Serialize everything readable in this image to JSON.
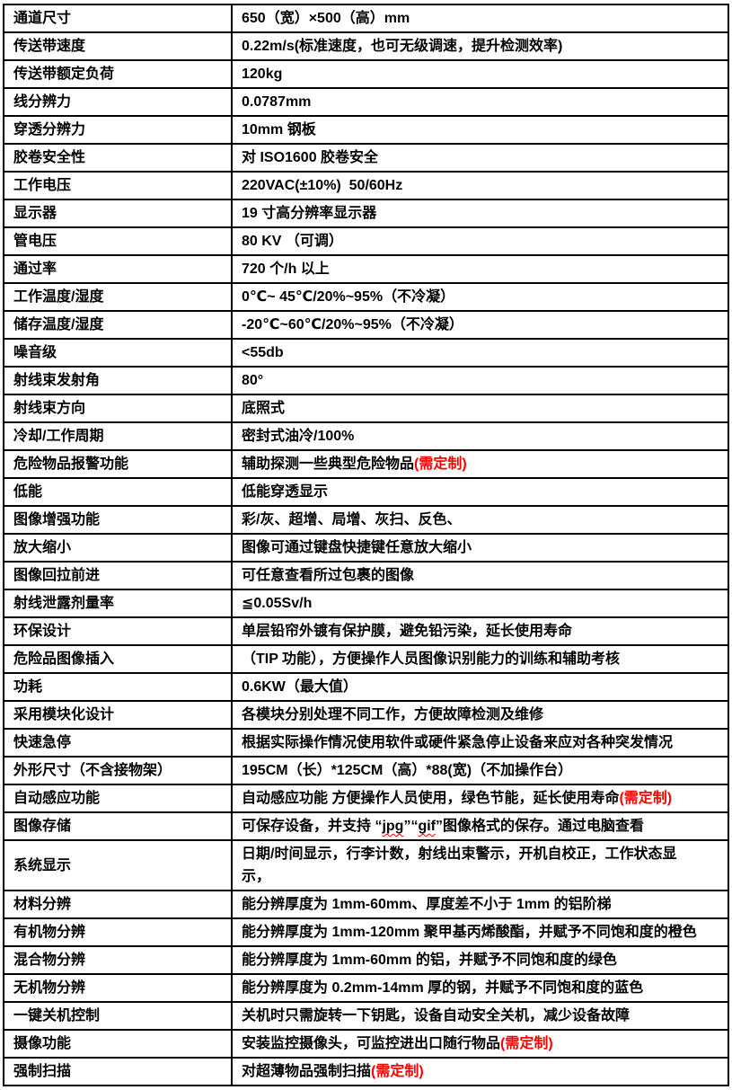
{
  "colors": {
    "row_shade": "#d9d9d9",
    "border": "#000000",
    "highlight_red": "#ff0000",
    "background": "#ffffff"
  },
  "table": {
    "rows": [
      {
        "label": "通道尺寸",
        "label_shaded": true,
        "value_shaded": true,
        "segments": [
          {
            "text": "650（宽）×500（高）mm"
          }
        ]
      },
      {
        "label": "传送带速度",
        "label_shaded": false,
        "value_shaded": false,
        "segments": [
          {
            "text": "0.22m/s(标准速度，也可无级调速，提升检测效率)"
          }
        ]
      },
      {
        "label": "传送带额定负荷",
        "label_shaded": true,
        "value_shaded": true,
        "segments": [
          {
            "text": "120kg"
          }
        ]
      },
      {
        "label": "线分辨力",
        "label_shaded": false,
        "value_shaded": false,
        "segments": [
          {
            "text": "0.0787mm"
          }
        ]
      },
      {
        "label": "穿透分辨力",
        "label_shaded": true,
        "value_shaded": true,
        "segments": [
          {
            "text": "10mm 钢板"
          }
        ]
      },
      {
        "label": "胶卷安全性",
        "label_shaded": false,
        "value_shaded": false,
        "segments": [
          {
            "text": "对 ISO1600 胶卷安全"
          }
        ]
      },
      {
        "label": "工作电压",
        "label_shaded": true,
        "value_shaded": true,
        "segments": [
          {
            "text": "220VAC(±10%)  50/60Hz"
          }
        ]
      },
      {
        "label": "显示器",
        "label_shaded": false,
        "value_shaded": false,
        "segments": [
          {
            "text": "19 寸高分辨率显示器"
          }
        ]
      },
      {
        "label": "管电压",
        "label_shaded": true,
        "value_shaded": true,
        "segments": [
          {
            "text": "80 KV （可调）"
          }
        ]
      },
      {
        "label": "通过率",
        "label_shaded": false,
        "value_shaded": false,
        "segments": [
          {
            "text": "720 个/h 以上"
          }
        ]
      },
      {
        "label": "工作温度/湿度",
        "label_shaded": true,
        "value_shaded": true,
        "segments": [
          {
            "text": "0℃~ 45℃/20%~95%（不冷凝）"
          }
        ]
      },
      {
        "label": "储存温度/湿度",
        "label_shaded": false,
        "value_shaded": false,
        "segments": [
          {
            "text": "-20℃~60℃/20%~95%（不冷凝）"
          }
        ]
      },
      {
        "label": "噪音级",
        "label_shaded": false,
        "value_shaded": false,
        "segments": [
          {
            "text": "<55db"
          }
        ]
      },
      {
        "label": "射线束发射角",
        "label_shaded": true,
        "value_shaded": true,
        "segments": [
          {
            "text": "80°"
          }
        ]
      },
      {
        "label": "射线束方向",
        "label_shaded": false,
        "value_shaded": false,
        "segments": [
          {
            "text": "底照式"
          }
        ]
      },
      {
        "label": "冷却/工作周期",
        "label_shaded": true,
        "value_shaded": true,
        "segments": [
          {
            "text": "密封式油冷/100%"
          }
        ]
      },
      {
        "label": "危险物品报警功能",
        "label_shaded": true,
        "value_shaded": true,
        "segments": [
          {
            "text": "辅助探测一些典型危险物品"
          },
          {
            "text": "(需定制)",
            "style": "red"
          }
        ]
      },
      {
        "label": "低能",
        "label_shaded": false,
        "value_shaded": false,
        "segments": [
          {
            "text": "低能穿透显示"
          }
        ]
      },
      {
        "label": "图像增强功能",
        "label_shaded": true,
        "value_shaded": true,
        "segments": [
          {
            "text": "彩/灰、超增、局增、灰扫、反色、"
          }
        ]
      },
      {
        "label": "放大缩小",
        "label_shaded": false,
        "value_shaded": false,
        "segments": [
          {
            "text": "图像可通过键盘快捷键任意放大缩小"
          }
        ]
      },
      {
        "label": "图像回拉前进",
        "label_shaded": true,
        "value_shaded": true,
        "segments": [
          {
            "text": "可任意查看所过包裹的图像"
          }
        ]
      },
      {
        "label": "射线泄露剂量率",
        "label_shaded": false,
        "value_shaded": false,
        "segments": [
          {
            "text": "≦0.05Sv/h"
          }
        ]
      },
      {
        "label": "环保设计",
        "label_shaded": true,
        "value_shaded": true,
        "segments": [
          {
            "text": "单层铅帘外镀有保护膜，避免铅污染，延长使用寿命"
          }
        ]
      },
      {
        "label": "危险品图像插入",
        "label_shaded": false,
        "value_shaded": false,
        "segments": [
          {
            "text": "（TIP 功能），方便操作人员图像识别能力的训练和辅助考核"
          }
        ]
      },
      {
        "label": "功耗",
        "label_shaded": true,
        "value_shaded": true,
        "segments": [
          {
            "text": "0.6KW（最大值）"
          }
        ]
      },
      {
        "label": "采用模块化设计",
        "label_shaded": false,
        "value_shaded": false,
        "segments": [
          {
            "text": "各模块分别处理不同工作，方便故障检测及维修"
          }
        ]
      },
      {
        "label": "快速急停",
        "label_shaded": true,
        "value_shaded": false,
        "segments": [
          {
            "text": "根据实际操作情况使用软件或硬件紧急停止设备来应对各种突发情况"
          }
        ]
      },
      {
        "label": "外形尺寸（不含接物架）",
        "label_shaded": true,
        "value_shaded": true,
        "segments": [
          {
            "text": "195CM（长）*125CM（高）*88(宽)（不加操作台）"
          }
        ]
      },
      {
        "label": "自动感应功能",
        "label_shaded": false,
        "value_shaded": false,
        "segments": [
          {
            "text": "自动感应功能 方便操作人员使用，绿色节能，延长使用寿命"
          },
          {
            "text": "(需定制)",
            "style": "red"
          }
        ]
      },
      {
        "label": "图像存储",
        "label_shaded": false,
        "value_shaded": false,
        "segments": [
          {
            "text": "可保存设备，并支持 “"
          },
          {
            "text": "jpg",
            "style": "wavy"
          },
          {
            "text": "”“"
          },
          {
            "text": "gif",
            "style": "wavy"
          },
          {
            "text": "”图像格式的保存。通过电脑查看"
          }
        ]
      },
      {
        "label": "系统显示",
        "label_shaded": false,
        "value_shaded": false,
        "segments": [
          {
            "text": "日期/时间显示，行李计数，射线出束警示，开机自校正，工作状态显\n示，"
          }
        ]
      },
      {
        "label": "材料分辨",
        "label_shaded": true,
        "value_shaded": true,
        "segments": [
          {
            "text": "能分辨厚度为 1mm-60mm、厚度差不小于 1mm 的铝阶梯"
          }
        ]
      },
      {
        "label": "有机物分辨",
        "label_shaded": false,
        "value_shaded": false,
        "segments": [
          {
            "text": "能分辨厚度为 1mm-120mm 聚甲基丙烯酸酯，并赋予不同饱和度的橙色"
          }
        ]
      },
      {
        "label": "混合物分辨",
        "label_shaded": true,
        "value_shaded": true,
        "segments": [
          {
            "text": "能分辨厚度为 1mm-60mm 的铝，并赋予不同饱和度的绿色"
          }
        ]
      },
      {
        "label": "无机物分辨",
        "label_shaded": false,
        "value_shaded": false,
        "segments": [
          {
            "text": "能分辨厚度为 0.2mm-14mm 厚的钢，并赋予不同饱和度的蓝色"
          }
        ]
      },
      {
        "label": "一键关机控制",
        "label_shaded": true,
        "value_shaded": true,
        "segments": [
          {
            "text": "关机时只需旋转一下钥匙，设备自动安全关机，减少设备故障"
          }
        ]
      },
      {
        "label": "摄像功能",
        "label_shaded": false,
        "value_shaded": false,
        "segments": [
          {
            "text": "安装监控摄像头，可监控进出口随行物品"
          },
          {
            "text": "(需定制)",
            "style": "red"
          }
        ]
      },
      {
        "label": "强制扫描",
        "label_shaded": false,
        "value_shaded": false,
        "segments": [
          {
            "text": "对超薄物品强制扫描"
          },
          {
            "text": "(需定制)",
            "style": "red"
          }
        ]
      }
    ]
  }
}
